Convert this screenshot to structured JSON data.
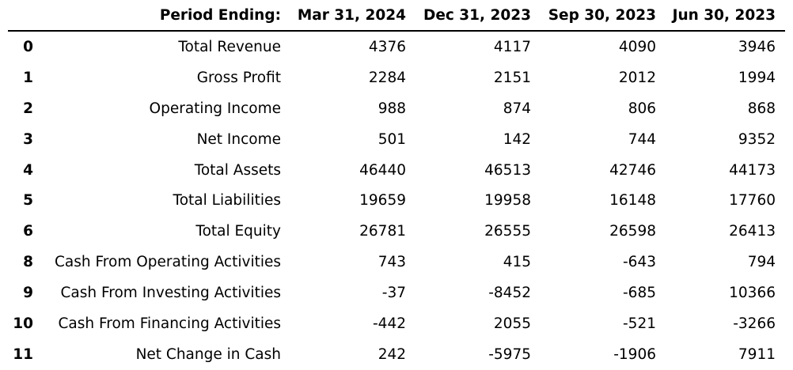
{
  "header": {
    "index_label": "",
    "period_label": "Period Ending:",
    "columns": [
      "Mar 31, 2024",
      "Dec 31, 2023",
      "Sep 30, 2023",
      "Jun 30, 2023"
    ]
  },
  "rows": [
    {
      "index": "0",
      "label": "Total Revenue",
      "values": [
        "4376",
        "4117",
        "4090",
        "3946"
      ]
    },
    {
      "index": "1",
      "label": "Gross Profit",
      "values": [
        "2284",
        "2151",
        "2012",
        "1994"
      ]
    },
    {
      "index": "2",
      "label": "Operating Income",
      "values": [
        "988",
        "874",
        "806",
        "868"
      ]
    },
    {
      "index": "3",
      "label": "Net Income",
      "values": [
        "501",
        "142",
        "744",
        "9352"
      ]
    },
    {
      "index": "4",
      "label": "Total Assets",
      "values": [
        "46440",
        "46513",
        "42746",
        "44173"
      ]
    },
    {
      "index": "5",
      "label": "Total Liabilities",
      "values": [
        "19659",
        "19958",
        "16148",
        "17760"
      ]
    },
    {
      "index": "6",
      "label": "Total Equity",
      "values": [
        "26781",
        "26555",
        "26598",
        "26413"
      ]
    },
    {
      "index": "8",
      "label": "Cash From Operating Activities",
      "values": [
        "743",
        "415",
        "-643",
        "794"
      ]
    },
    {
      "index": "9",
      "label": "Cash From Investing Activities",
      "values": [
        "-37",
        "-8452",
        "-685",
        "10366"
      ]
    },
    {
      "index": "10",
      "label": "Cash From Financing Activities",
      "values": [
        "-442",
        "2055",
        "-521",
        "-3266"
      ]
    },
    {
      "index": "11",
      "label": "Net Change in Cash",
      "values": [
        "242",
        "-5975",
        "-1906",
        "7911"
      ]
    }
  ]
}
